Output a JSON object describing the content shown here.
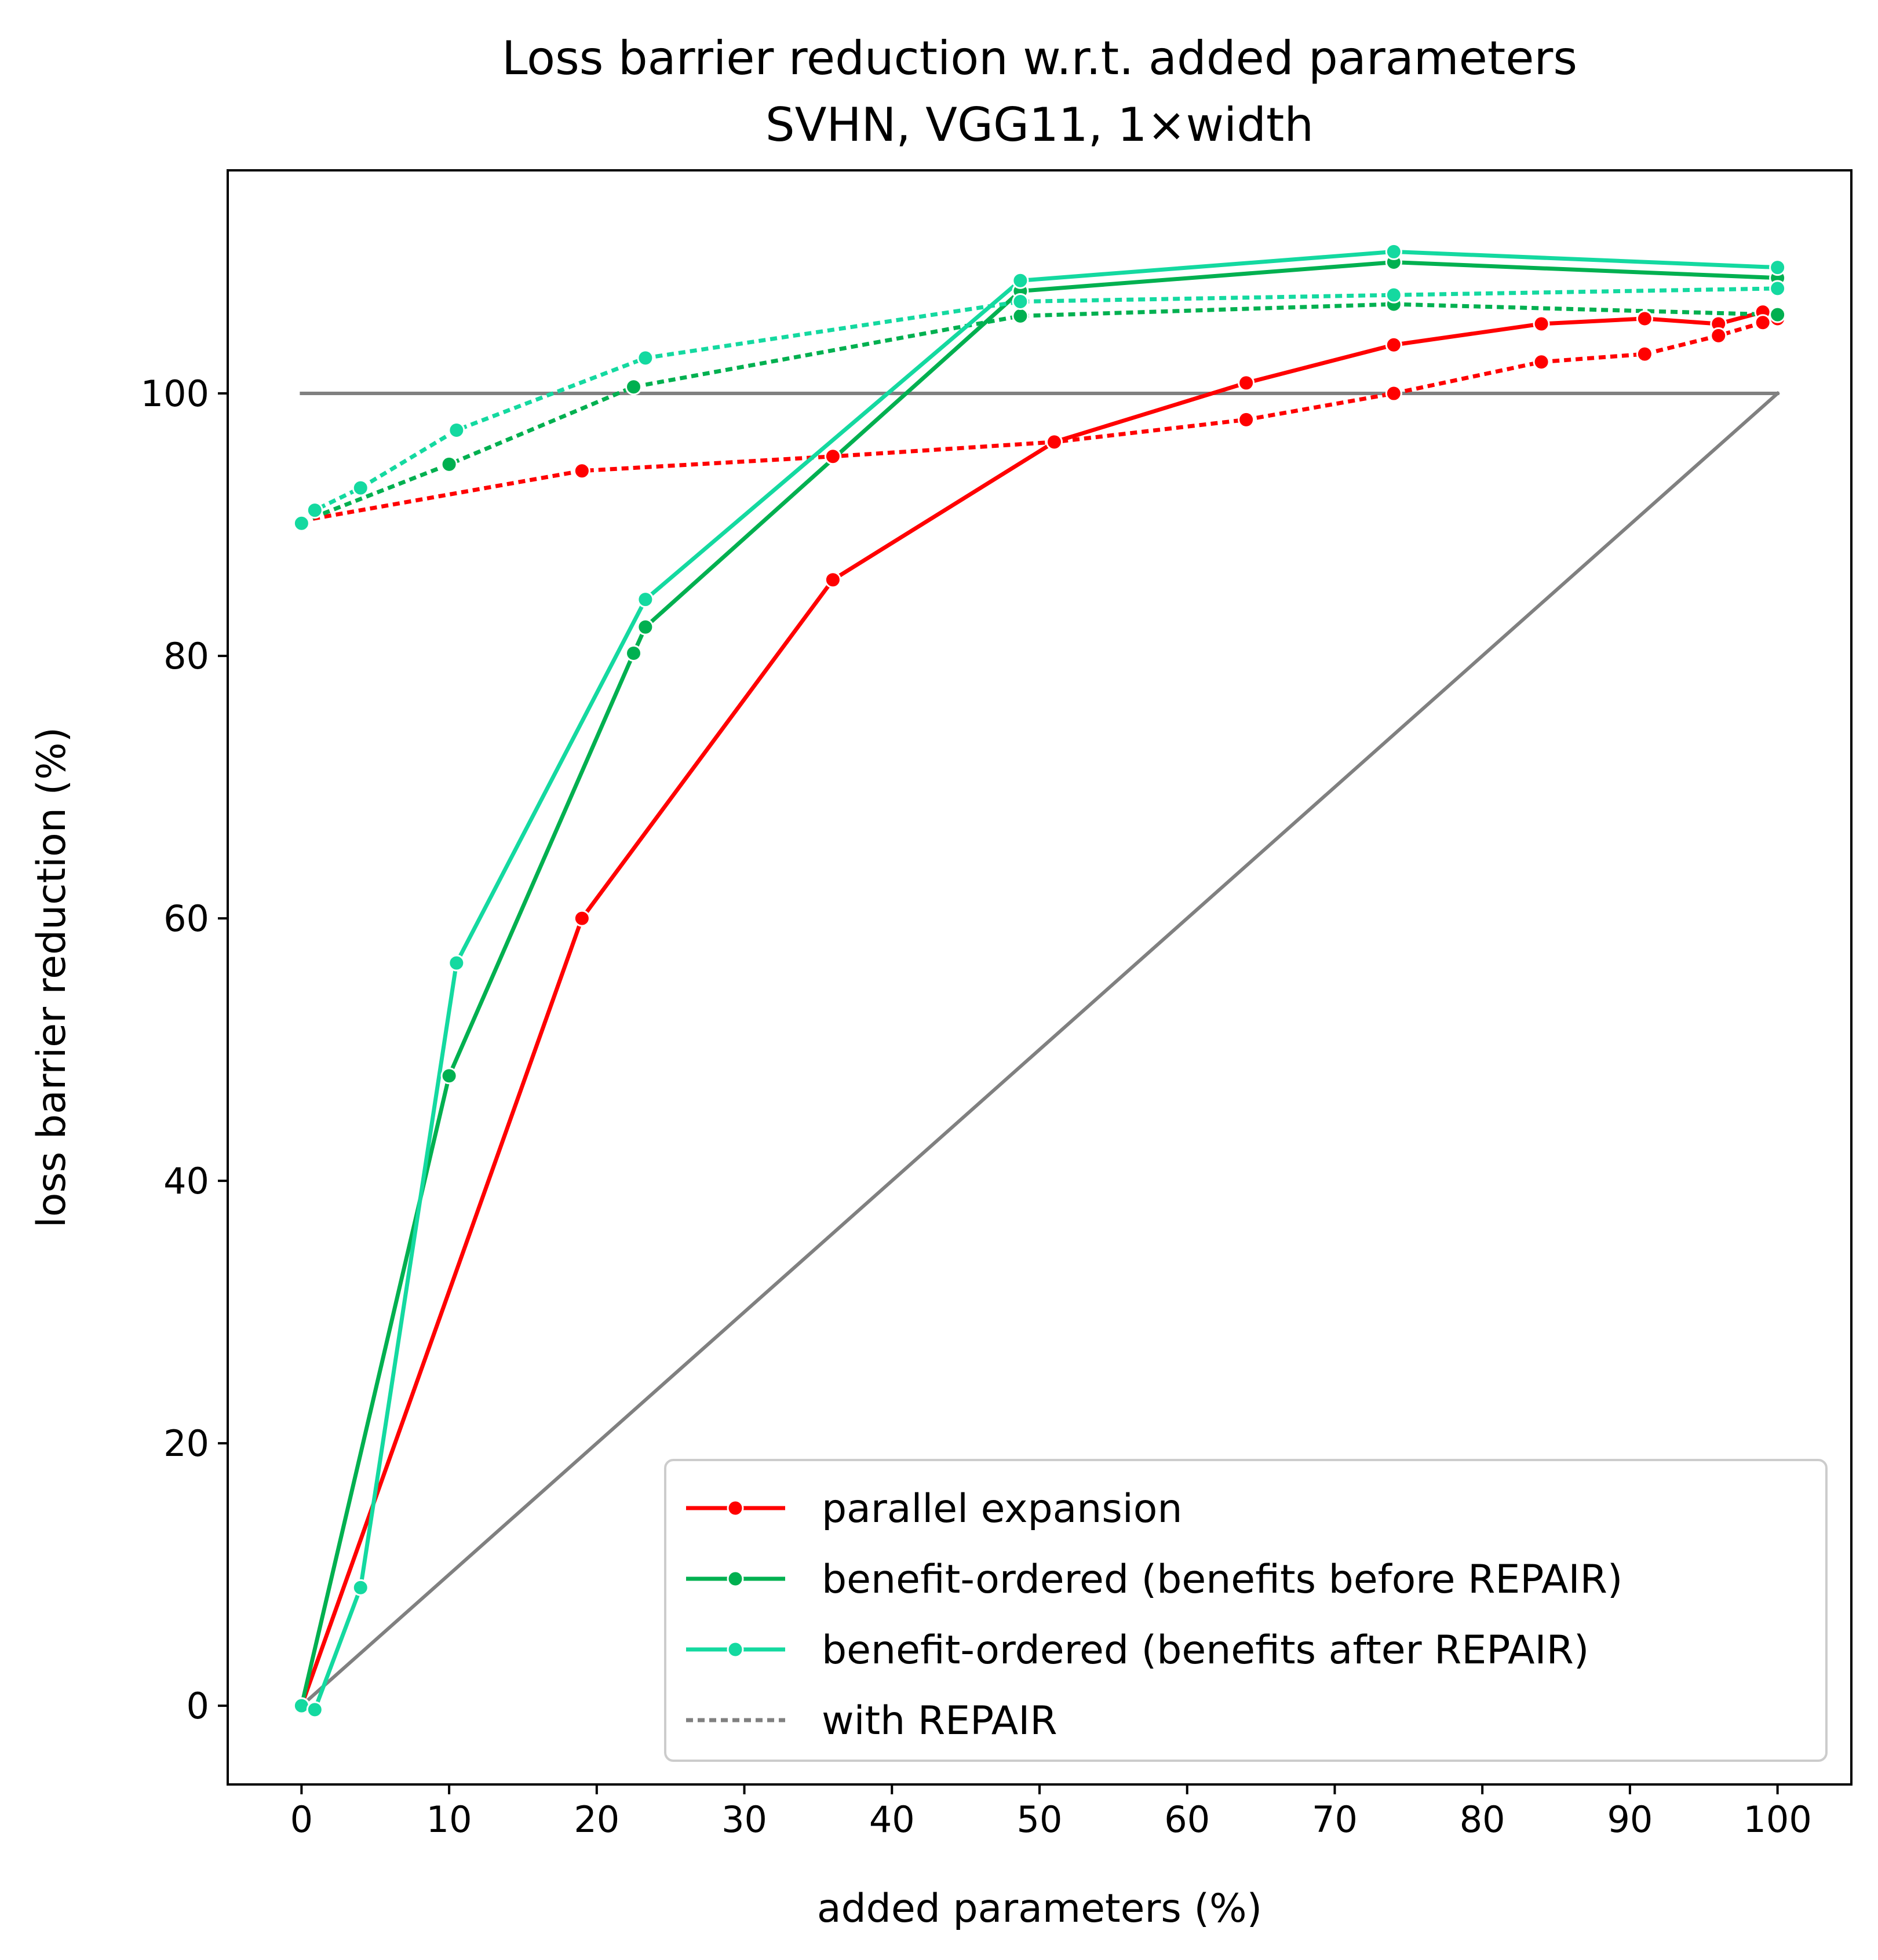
{
  "chart_data": {
    "type": "line",
    "title": "Loss barrier reduction w.r.t. added parameters",
    "subtitle": "SVHN, VGG11, 1×width",
    "xlabel": "added parameters (%)",
    "ylabel": "loss barrier reduction (%)",
    "xlim": [
      -5,
      105
    ],
    "ylim": [
      -6,
      117
    ],
    "xticks": [
      "0",
      "10",
      "20",
      "30",
      "40",
      "50",
      "60",
      "70",
      "80",
      "90",
      "100"
    ],
    "yticks": [
      "0",
      "20",
      "40",
      "60",
      "80",
      "100"
    ],
    "grid": false,
    "legend_position": "lower-right",
    "legend": [
      {
        "label": "parallel expansion",
        "color": "#ff0000",
        "style": "solid",
        "marker": true
      },
      {
        "label": "benefit-ordered (benefits before REPAIR)",
        "color": "#00b050",
        "style": "solid",
        "marker": true
      },
      {
        "label": "benefit-ordered (benefits after REPAIR)",
        "color": "#14d9a0",
        "style": "solid",
        "marker": true
      },
      {
        "label": "with REPAIR",
        "color": "#808080",
        "style": "dotted",
        "marker": false
      }
    ],
    "reference_lines": [
      {
        "name": "upper bound",
        "color": "#808080",
        "x": [
          0,
          100
        ],
        "y": [
          100,
          100
        ]
      },
      {
        "name": "linear baseline",
        "color": "#808080",
        "x": [
          0,
          100
        ],
        "y": [
          0,
          100
        ]
      }
    ],
    "series": [
      {
        "key": "parallel",
        "color": "#ff0000",
        "style": "solid",
        "x": [
          0,
          19,
          36,
          51,
          64,
          74,
          84,
          91,
          96,
          99,
          100
        ],
        "y": [
          0,
          60,
          85.8,
          96.3,
          100.8,
          103.7,
          105.3,
          105.7,
          105.3,
          106.2,
          105.8
        ]
      },
      {
        "key": "parallel-repair",
        "color": "#ff0000",
        "style": "dotted",
        "x": [
          0,
          19,
          36,
          51,
          64,
          74,
          84,
          91,
          96,
          99,
          100
        ],
        "y": [
          90.3,
          94.1,
          95.2,
          96.3,
          98,
          100,
          102.4,
          103,
          104.4,
          105.4,
          105.7
        ]
      },
      {
        "key": "before",
        "color": "#00b050",
        "style": "solid",
        "x": [
          0,
          10,
          22.5,
          23.3,
          48.7,
          74,
          100
        ],
        "y": [
          0,
          48,
          80.2,
          82.2,
          107.8,
          110,
          108.8
        ]
      },
      {
        "key": "before-repair",
        "color": "#00b050",
        "style": "dotted",
        "x": [
          0,
          10,
          22.5,
          48.7,
          74,
          100
        ],
        "y": [
          90.2,
          94.6,
          100.5,
          105.9,
          106.8,
          106
        ]
      },
      {
        "key": "after",
        "color": "#14d9a0",
        "style": "solid",
        "x": [
          0,
          0.9,
          4,
          10.5,
          23.3,
          48.7,
          74,
          100
        ],
        "y": [
          0,
          -0.3,
          9,
          56.6,
          84.3,
          108.6,
          110.8,
          109.6
        ]
      },
      {
        "key": "after-repair",
        "color": "#14d9a0",
        "style": "dotted",
        "x": [
          0,
          0.9,
          4,
          10.5,
          23.3,
          48.7,
          74,
          100
        ],
        "y": [
          90.1,
          91.1,
          92.8,
          97.2,
          102.7,
          107,
          107.5,
          108
        ]
      }
    ]
  }
}
